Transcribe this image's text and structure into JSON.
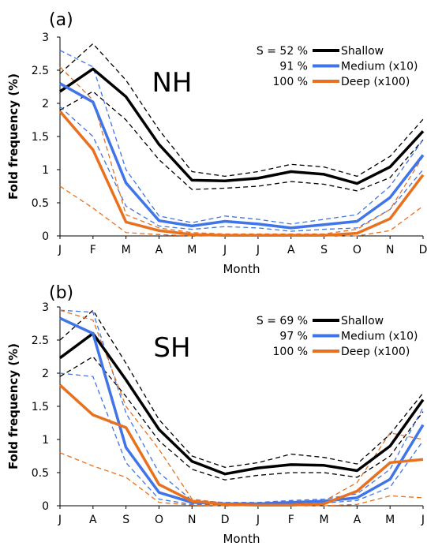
{
  "colors": {
    "shallow": "#000000",
    "medium": "#3f75e8",
    "deep": "#e8711f"
  },
  "chart_data": [
    {
      "type": "line",
      "panel_label": "(a)",
      "region": "NH",
      "xlabel": "Month",
      "ylabel": "Fold frequency (%)",
      "categories": [
        "J",
        "F",
        "M",
        "A",
        "M",
        "J",
        "J",
        "A",
        "S",
        "O",
        "N",
        "D"
      ],
      "ylim": [
        0,
        3
      ],
      "yticks": [
        "0",
        "0.5",
        "1",
        "1.5",
        "2",
        "2.5",
        "3"
      ],
      "legend": {
        "placement": "top-right"
      },
      "s_labels": [
        "S = 52 %",
        "91 %",
        "100 %"
      ],
      "series": [
        {
          "name": "Shallow",
          "role": "shallow",
          "values": [
            2.18,
            2.52,
            2.1,
            1.38,
            0.84,
            0.83,
            0.87,
            0.97,
            0.93,
            0.79,
            1.04,
            1.58
          ],
          "lower": [
            1.9,
            2.18,
            1.75,
            1.15,
            0.7,
            0.72,
            0.75,
            0.82,
            0.78,
            0.68,
            0.88,
            1.45
          ],
          "upper": [
            2.45,
            2.9,
            2.35,
            1.6,
            0.97,
            0.9,
            0.97,
            1.08,
            1.04,
            0.9,
            1.2,
            1.76
          ]
        },
        {
          "name": "Medium (x10)",
          "role": "medium",
          "values": [
            2.3,
            2.02,
            0.8,
            0.23,
            0.15,
            0.22,
            0.18,
            0.12,
            0.17,
            0.22,
            0.58,
            1.22
          ],
          "lower": [
            1.95,
            1.5,
            0.45,
            0.15,
            0.1,
            0.14,
            0.12,
            0.07,
            0.1,
            0.12,
            0.4,
            1.0
          ],
          "upper": [
            2.8,
            2.55,
            1.0,
            0.3,
            0.2,
            0.3,
            0.25,
            0.18,
            0.25,
            0.32,
            0.75,
            1.45
          ]
        },
        {
          "name": "Deep (x100)",
          "role": "deep",
          "values": [
            1.88,
            1.3,
            0.21,
            0.08,
            0.02,
            0.01,
            0.01,
            0.01,
            0.01,
            0.04,
            0.26,
            0.92
          ],
          "lower": [
            0.75,
            0.42,
            0.05,
            0.02,
            0.0,
            0.0,
            0.0,
            0.0,
            0.0,
            0.0,
            0.08,
            0.45
          ],
          "upper": [
            2.55,
            2.05,
            0.32,
            0.12,
            0.05,
            0.03,
            0.03,
            0.03,
            0.03,
            0.1,
            0.4,
            1.2
          ]
        }
      ]
    },
    {
      "type": "line",
      "panel_label": "(b)",
      "region": "SH",
      "xlabel": "Month",
      "ylabel": "Fold frequency (%)",
      "categories": [
        "J",
        "A",
        "S",
        "O",
        "N",
        "D",
        "J",
        "F",
        "M",
        "A",
        "M",
        "J"
      ],
      "ylim": [
        0,
        3
      ],
      "yticks": [
        "0",
        "0.5",
        "1",
        "1.5",
        "2",
        "2.5",
        "3"
      ],
      "legend": {
        "placement": "top-right"
      },
      "s_labels": [
        "S = 69 %",
        "97 %",
        "100 %"
      ],
      "series": [
        {
          "name": "Shallow",
          "role": "shallow",
          "values": [
            2.23,
            2.6,
            1.9,
            1.15,
            0.67,
            0.48,
            0.57,
            0.62,
            0.61,
            0.53,
            0.9,
            1.6
          ],
          "lower": [
            1.95,
            2.25,
            1.65,
            0.98,
            0.55,
            0.39,
            0.46,
            0.5,
            0.5,
            0.43,
            0.75,
            1.42
          ],
          "upper": [
            2.5,
            2.95,
            2.15,
            1.3,
            0.75,
            0.58,
            0.65,
            0.78,
            0.73,
            0.63,
            1.08,
            1.7
          ]
        },
        {
          "name": "Medium (x10)",
          "role": "medium",
          "values": [
            2.83,
            2.6,
            0.88,
            0.2,
            0.05,
            0.03,
            0.03,
            0.05,
            0.07,
            0.12,
            0.4,
            1.22
          ],
          "lower": [
            2.0,
            1.95,
            0.65,
            0.1,
            0.02,
            0.02,
            0.02,
            0.03,
            0.04,
            0.08,
            0.28,
            0.98
          ],
          "upper": [
            2.95,
            2.92,
            1.4,
            0.5,
            0.08,
            0.05,
            0.05,
            0.08,
            0.1,
            0.18,
            0.55,
            1.48
          ]
        },
        {
          "name": "Deep (x100)",
          "role": "deep",
          "values": [
            1.82,
            1.37,
            1.18,
            0.32,
            0.07,
            0.02,
            0.01,
            0.01,
            0.03,
            0.22,
            0.65,
            0.7
          ],
          "lower": [
            0.8,
            0.6,
            0.43,
            0.05,
            0.01,
            0.0,
            0.0,
            0.0,
            0.0,
            0.02,
            0.15,
            0.12
          ],
          "upper": [
            2.95,
            2.8,
            1.5,
            0.85,
            0.1,
            0.04,
            0.03,
            0.03,
            0.07,
            0.35,
            1.1,
            1.0
          ]
        }
      ]
    }
  ]
}
